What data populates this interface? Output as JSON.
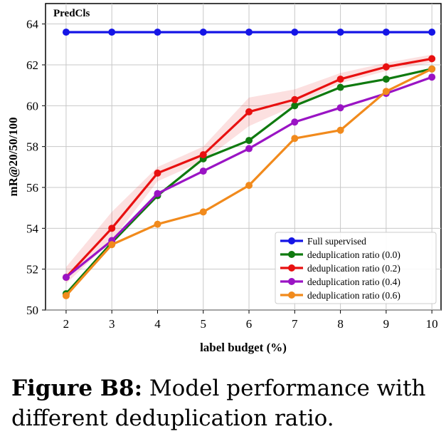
{
  "chart_data": {
    "type": "line",
    "title": "PredCls",
    "xlabel": "label budget (%)",
    "ylabel": "mR@20/50/100",
    "x": [
      2,
      3,
      4,
      5,
      6,
      7,
      8,
      9,
      10
    ],
    "xlim": [
      1.55,
      10.2
    ],
    "ylim": [
      50,
      65
    ],
    "yticks": [
      50,
      52,
      54,
      56,
      58,
      60,
      62,
      64
    ],
    "grid": true,
    "legend_position": "lower-right",
    "series": [
      {
        "name": "Full supervised",
        "color": "#1515e6",
        "values": [
          63.6,
          63.6,
          63.6,
          63.6,
          63.6,
          63.6,
          63.6,
          63.6,
          63.6
        ]
      },
      {
        "name": "deduplication ratio (0.0)",
        "color": "#0f7a0f",
        "values": [
          50.8,
          53.3,
          55.6,
          57.4,
          58.3,
          60.0,
          60.9,
          61.3,
          61.8
        ]
      },
      {
        "name": "deduplication ratio (0.2)",
        "color": "#e81010",
        "values": [
          51.6,
          54.0,
          56.7,
          57.6,
          59.7,
          60.3,
          61.3,
          61.9,
          62.3
        ],
        "band": {
          "lower": [
            51.3,
            53.4,
            56.3,
            57.3,
            59.0,
            60.0,
            61.1,
            61.7,
            62.1
          ],
          "upper": [
            52.1,
            54.8,
            57.0,
            58.0,
            60.4,
            60.8,
            61.6,
            62.1,
            62.5
          ]
        }
      },
      {
        "name": "deduplication ratio (0.4)",
        "color": "#9a14c4",
        "values": [
          51.6,
          53.4,
          55.7,
          56.8,
          57.9,
          59.2,
          59.9,
          60.6,
          61.4
        ]
      },
      {
        "name": "deduplication ratio (0.6)",
        "color": "#f18a1c",
        "values": [
          50.7,
          53.2,
          54.2,
          54.8,
          56.1,
          58.4,
          58.8,
          60.7,
          61.8
        ]
      }
    ]
  },
  "caption": {
    "label": "Figure B8:",
    "text": " Model performance with different deduplication ratio."
  }
}
